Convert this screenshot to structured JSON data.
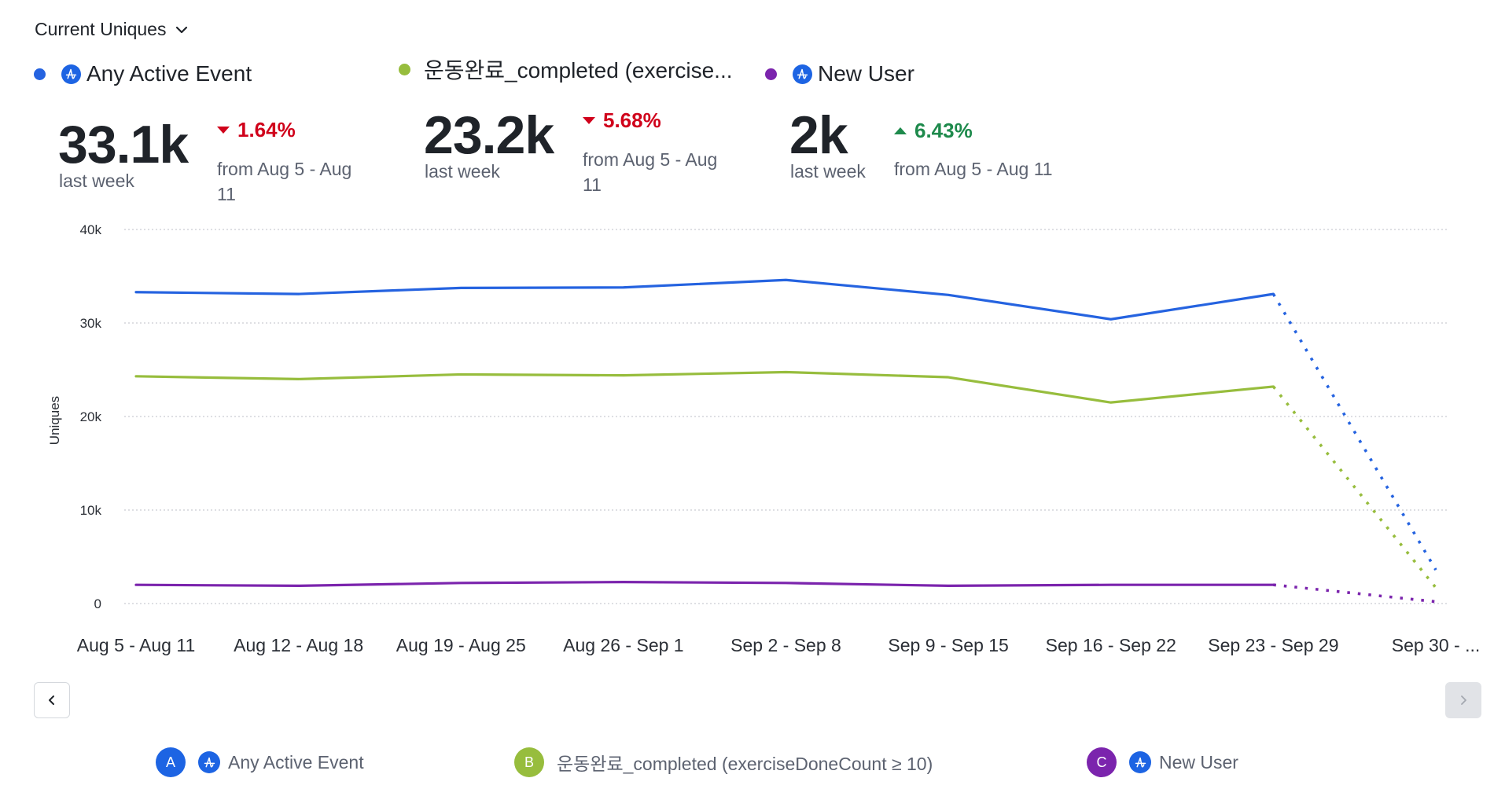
{
  "header": {
    "metric_label": "Current Uniques",
    "dropdown_icon": "chevron-down-icon"
  },
  "legend": [
    {
      "label": "Any Active Event",
      "color": "#2563e0",
      "has_icon": true,
      "icon": "amplitude-logo-icon",
      "letter": "A",
      "full_label": "Any Active Event"
    },
    {
      "label": "운동완료_completed (exercise...",
      "color": "#97bd3d",
      "has_icon": false,
      "letter": "B",
      "full_label": "운동완료_completed (exerciseDoneCount ≥ 10)"
    },
    {
      "label": "New User",
      "color": "#7b24ad",
      "has_icon": true,
      "icon": "amplitude-logo-icon",
      "letter": "C",
      "full_label": "New User"
    }
  ],
  "stats": [
    {
      "value": "33.1k",
      "period": "last week",
      "change": "1.64%",
      "direction": "down",
      "from_line1": "from Aug 5 - Aug",
      "from_line2": "11"
    },
    {
      "value": "23.2k",
      "period": "last week",
      "change": "5.68%",
      "direction": "down",
      "from_line1": "from Aug 5 - Aug",
      "from_line2": "11"
    },
    {
      "value": "2k",
      "period": "last week",
      "change": "6.43%",
      "direction": "up",
      "from_line1": "from Aug 5 - Aug 11",
      "from_line2": ""
    }
  ],
  "colors": {
    "down": "#d0021b",
    "up": "#1e8a4c",
    "amp_icon_bg": "#1d64e3"
  },
  "nav": {
    "prev_icon": "chevron-left-icon",
    "next_icon": "chevron-right-icon",
    "next_disabled": true
  },
  "chart_data": {
    "type": "line",
    "title": "",
    "xlabel": "",
    "ylabel": "Uniques",
    "ylim": [
      0,
      40000
    ],
    "yticks": [
      0,
      10000,
      20000,
      30000,
      40000
    ],
    "ytick_labels": [
      "0",
      "10k",
      "20k",
      "30k",
      "40k"
    ],
    "grid": true,
    "grid_style": "dotted",
    "categories": [
      "Aug 5 - Aug 11",
      "Aug 12 - Aug 18",
      "Aug 19 - Aug 25",
      "Aug 26 - Sep 1",
      "Sep 2 - Sep 8",
      "Sep 9 - Sep 15",
      "Sep 16 - Sep 22",
      "Sep 23 - Sep 29",
      "Sep 30 - ..."
    ],
    "incomplete_from_index": 7,
    "series": [
      {
        "name": "Any Active Event",
        "color": "#2563e0",
        "values": [
          33300,
          33100,
          33750,
          33800,
          34600,
          33000,
          30400,
          33100,
          3600
        ]
      },
      {
        "name": "운동완료_completed (exerciseDoneCount ≥ 10)",
        "color": "#97bd3d",
        "values": [
          24300,
          24000,
          24500,
          24400,
          24750,
          24200,
          21500,
          23200,
          1700
        ]
      },
      {
        "name": "New User",
        "color": "#7b24ad",
        "values": [
          2000,
          1900,
          2200,
          2300,
          2200,
          1900,
          2000,
          2000,
          200
        ]
      }
    ]
  }
}
